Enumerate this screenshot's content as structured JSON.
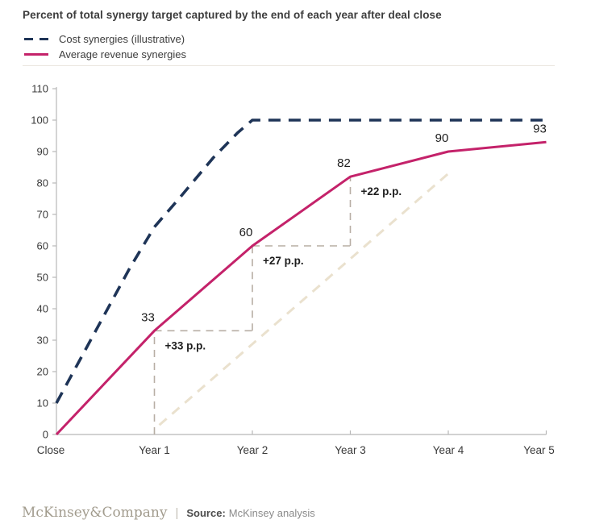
{
  "title": "Percent of total synergy target captured by the end of each year after deal close",
  "legend": {
    "items": [
      {
        "label": "Cost synergies (illustrative)",
        "color": "#1e3457",
        "style": "dashed"
      },
      {
        "label": "Average revenue synergies",
        "color": "#c4226a",
        "style": "solid"
      }
    ]
  },
  "footer": {
    "brand": "McKinsey&Company",
    "separator": "|",
    "source_label": "Source:",
    "source_text": "McKinsey analysis"
  },
  "chart_data": {
    "type": "line",
    "title": "Percent of total synergy target captured by the end of each year after deal close",
    "x_categories": [
      "Close",
      "Year 1",
      "Year 2",
      "Year 3",
      "Year 4",
      "Year 5"
    ],
    "y_ticks": [
      0,
      10,
      20,
      30,
      40,
      50,
      60,
      70,
      80,
      90,
      100,
      110
    ],
    "ylim": [
      0,
      110
    ],
    "grid": false,
    "legend_position": "top-left",
    "colors": {
      "cost_navy": "#1e3457",
      "revenue_pink": "#c4226a",
      "annotation_gray": "#b7aea4",
      "diagonal_tan": "#eae1ce",
      "axis_gray": "#b8b8b8",
      "tick_text": "#3a3a3a",
      "label_text": "#1d1d1d"
    },
    "series": [
      {
        "name": "Cost synergies (illustrative)",
        "style": "dashed",
        "values": [
          10,
          66,
          100,
          100,
          100,
          100
        ],
        "shape_points": [
          [
            0,
            10
          ],
          [
            0.75,
            53
          ],
          [
            1,
            66
          ],
          [
            1.25,
            75
          ],
          [
            1.6,
            88
          ],
          [
            1.85,
            96
          ],
          [
            2,
            100
          ],
          [
            3,
            100
          ],
          [
            4,
            100
          ],
          [
            5,
            100
          ]
        ],
        "point_labels": [
          "",
          "",
          "",
          "",
          "",
          ""
        ]
      },
      {
        "name": "Average revenue synergies",
        "style": "solid",
        "values": [
          0,
          33,
          60,
          82,
          90,
          93
        ],
        "point_labels": [
          "",
          "33",
          "60",
          "82",
          "90",
          "93"
        ]
      }
    ],
    "annotations": {
      "gains": [
        {
          "label": "+33 p.p.",
          "year": 1,
          "base": 0,
          "top": 33,
          "to_year": 2
        },
        {
          "label": "+27 p.p.",
          "year": 2,
          "base": 33,
          "top": 60,
          "to_year": 3
        },
        {
          "label": "+22 p.p.",
          "year": 3,
          "base": 60,
          "top": 82,
          "to_year": null
        }
      ],
      "diagonal": {
        "from_year": 1.05,
        "from_value": 3,
        "to_year": 4,
        "to_value": 83
      }
    }
  }
}
